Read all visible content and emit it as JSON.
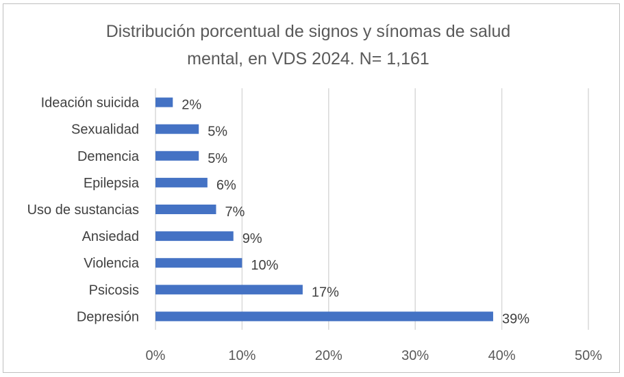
{
  "chart_data": {
    "type": "bar",
    "orientation": "horizontal",
    "title_line1": "Distribución porcentual de signos y sínomas de salud",
    "title_line2": "mental, en VDS 2024. N= 1,161",
    "categories": [
      "Ideación suicida",
      "Sexualidad",
      "Demencia",
      "Epilepsia",
      "Uso de sustancias",
      "Ansiedad",
      "Violencia",
      "Psicosis",
      "Depresión"
    ],
    "values": [
      2,
      5,
      5,
      6,
      7,
      9,
      10,
      17,
      39
    ],
    "data_labels": [
      "2%",
      "5%",
      "5%",
      "6%",
      "7%",
      "9%",
      "10%",
      "17%",
      "39%"
    ],
    "xlim": [
      0,
      50
    ],
    "x_ticks": [
      0,
      10,
      20,
      30,
      40,
      50
    ],
    "x_tick_labels": [
      "0%",
      "10%",
      "20%",
      "30%",
      "40%",
      "50%"
    ],
    "xlabel": "",
    "ylabel": "",
    "grid": "vertical",
    "legend": "none",
    "bar_color": "#4472c4",
    "grid_color": "#d9d9d9"
  }
}
